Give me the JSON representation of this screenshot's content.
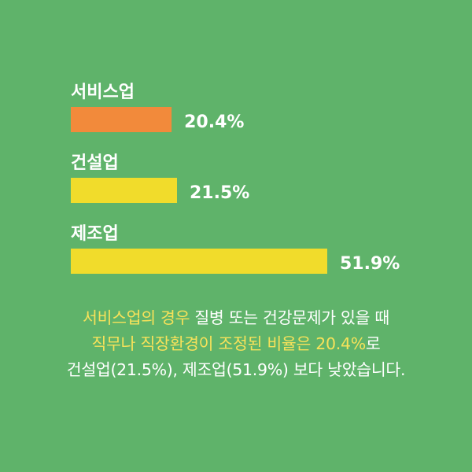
{
  "chart_data": {
    "type": "bar",
    "orientation": "horizontal",
    "categories": [
      "서비스업",
      "건설업",
      "제조업"
    ],
    "values": [
      20.4,
      21.5,
      51.9
    ],
    "value_labels": [
      "20.4%",
      "21.5%",
      "51.9%"
    ],
    "bar_colors": [
      "#f28a3b",
      "#f1dc2b",
      "#f1dc2b"
    ],
    "unit": "%",
    "xlim": [
      0,
      51.9
    ],
    "grid": false,
    "legend": "none"
  },
  "caption": {
    "line1": {
      "highlight": "서비스업의 경우",
      "text": " 질병 또는 건강문제가 있을 때"
    },
    "line2": {
      "highlight": "직무나 직장환경이 조정된 비율은 20.4%",
      "text": "로"
    },
    "line3": "건설업(21.5%), 제조업(51.9%) 보다 낮았습니다."
  },
  "colors": {
    "background": "#5fb36a",
    "highlight": "#f7e25a",
    "text": "#ffffff"
  }
}
